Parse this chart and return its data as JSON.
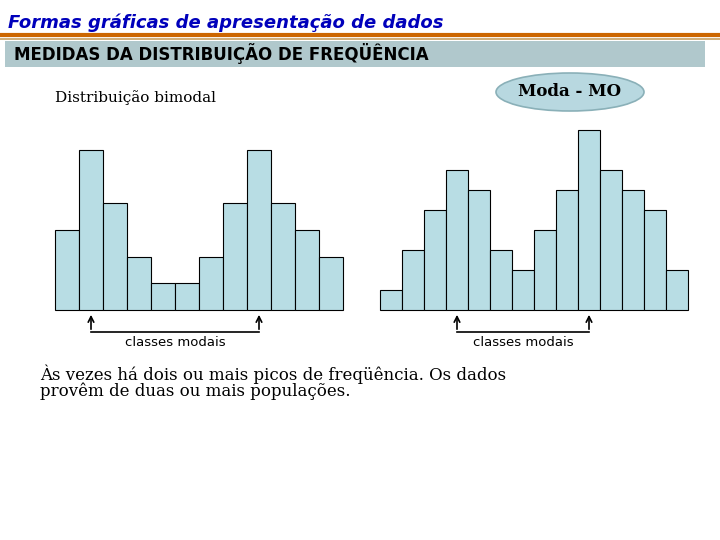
{
  "title": "Formas gráficas de apresentação de dados",
  "subtitle": "MEDIDAS DA DISTRIBUIÇÃO DE FREQÜÊNCIA",
  "label_bimodal": "Distribuição bimodal",
  "label_moda": "Moda - MO",
  "label_classes": "classes modais",
  "bottom_text1": "Às vezes há dois ou mais picos de freqüência. Os dados",
  "bottom_text2": "provêm de duas ou mais populações.",
  "bg_color": "#ffffff",
  "bar_color": "#b8dde4",
  "bar_edge_color": "#000000",
  "hist1_values": [
    3,
    6,
    4,
    2,
    1,
    1,
    2,
    4,
    6,
    4,
    3,
    2
  ],
  "hist2_values": [
    1,
    3,
    5,
    7,
    6,
    3,
    2,
    4,
    6,
    9,
    7,
    6,
    5,
    2
  ],
  "subtitle_bg": "#b0c8cc",
  "orange_line_color": "#cc6600",
  "title_color": "#0000bb",
  "title_fontsize": 13,
  "subtitle_fontsize": 12
}
